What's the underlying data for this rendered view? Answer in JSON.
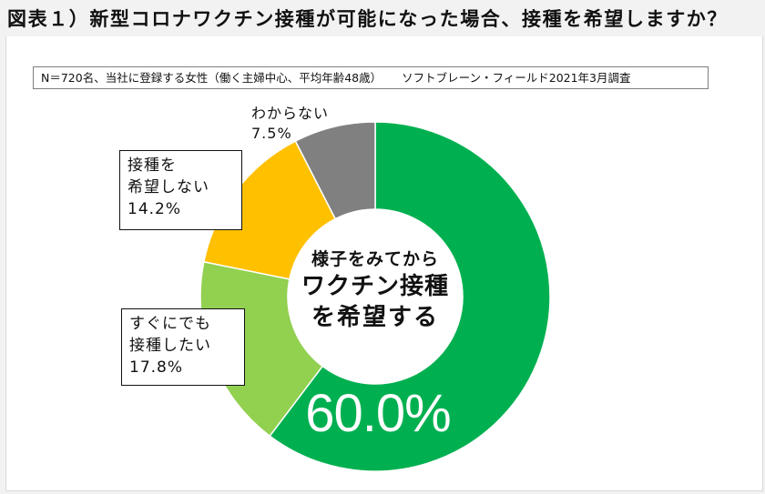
{
  "title": "図表１）新型コロナワクチン接種が可能になった場合、接種を希望しますか？",
  "note": {
    "sample": "N＝720名、当社に登録する女性（働く主婦中心、平均年齢48歳）",
    "source": "ソフトブレーン・フィールド2021年3月調査"
  },
  "center_label": {
    "line1": "様子をみてから",
    "line2": "ワクチン接種",
    "line3": "を希望する"
  },
  "labels": {
    "wait": {
      "value": "60.0%"
    },
    "now": {
      "line1": "すぐにでも",
      "line2": "接種したい",
      "value": "17.8%"
    },
    "no": {
      "line1": "接種を",
      "line2": "希望しない",
      "value": "14.2%"
    },
    "unknown": {
      "line1": "わからない",
      "value": "7.5%"
    }
  },
  "colors": {
    "wait": "#00b050",
    "now": "#92d050",
    "no": "#ffc000",
    "unknown": "#808080"
  },
  "chart_data": {
    "type": "pie",
    "subtype": "donut",
    "title": "新型コロナワクチン接種が可能になった場合、接種を希望しますか？",
    "categories": [
      "様子をみてからワクチン接種を希望する",
      "すぐにでも接種したい",
      "接種を希望しない",
      "わからない"
    ],
    "values": [
      60.0,
      17.8,
      14.2,
      7.5
    ],
    "unit": "%",
    "colors": [
      "#00b050",
      "#92d050",
      "#ffc000",
      "#808080"
    ],
    "start_angle": "12 o'clock, clockwise",
    "legend": "none (data labels with callout boxes)",
    "annotations": [
      "N＝720名、当社に登録する女性（働く主婦中心、平均年齢48歳）",
      "ソフトブレーン・フィールド2021年3月調査"
    ]
  }
}
